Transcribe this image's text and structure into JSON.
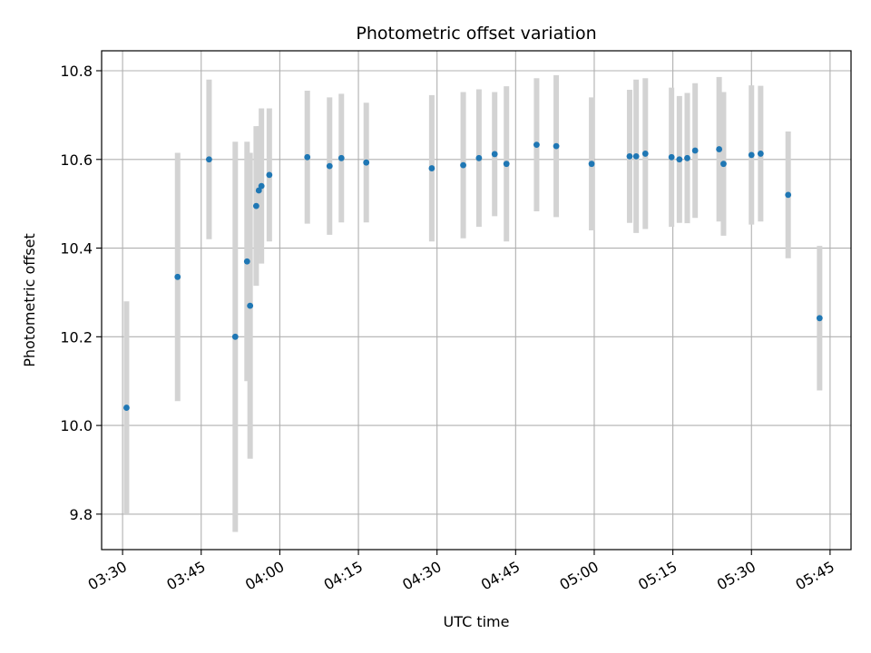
{
  "chart_data": {
    "type": "scatter",
    "title": "Photometric offset variation",
    "xlabel": "UTC time",
    "ylabel": "Photometric offset",
    "x_unit": "UTC time (hh:mm)",
    "xlim": [
      "03:26",
      "05:49"
    ],
    "ylim": [
      9.72,
      10.845
    ],
    "grid": true,
    "x_ticks": [
      "03:30",
      "03:45",
      "04:00",
      "04:15",
      "04:30",
      "04:45",
      "05:00",
      "05:15",
      "05:30",
      "05:45"
    ],
    "y_ticks": [
      9.8,
      10.0,
      10.2,
      10.4,
      10.6,
      10.8
    ],
    "y_tick_labels": [
      "9.8",
      "10.0",
      "10.2",
      "10.4",
      "10.6",
      "10.8"
    ],
    "colors": {
      "marker": "#1f77b4",
      "errorbar": "#d3d3d3",
      "grid": "#b0b0b0"
    },
    "points": [
      {
        "x": "03:30:45",
        "y": 10.04,
        "yerr": 0.24
      },
      {
        "x": "03:40:30",
        "y": 10.335,
        "yerr": 0.28
      },
      {
        "x": "03:46:30",
        "y": 10.6,
        "yerr": 0.18
      },
      {
        "x": "03:51:30",
        "y": 10.2,
        "yerr": 0.44
      },
      {
        "x": "03:53:45",
        "y": 10.37,
        "yerr": 0.27
      },
      {
        "x": "03:54:20",
        "y": 10.27,
        "yerr": 0.345
      },
      {
        "x": "03:55:30",
        "y": 10.495,
        "yerr": 0.18
      },
      {
        "x": "03:56:00",
        "y": 10.53,
        "yerr": 0.145
      },
      {
        "x": "03:56:30",
        "y": 10.54,
        "yerr": 0.175
      },
      {
        "x": "03:58:00",
        "y": 10.565,
        "yerr": 0.15
      },
      {
        "x": "04:05:15",
        "y": 10.605,
        "yerr": 0.15
      },
      {
        "x": "04:09:30",
        "y": 10.585,
        "yerr": 0.155
      },
      {
        "x": "04:11:45",
        "y": 10.603,
        "yerr": 0.145
      },
      {
        "x": "04:16:30",
        "y": 10.593,
        "yerr": 0.135
      },
      {
        "x": "04:29:00",
        "y": 10.58,
        "yerr": 0.165
      },
      {
        "x": "04:35:00",
        "y": 10.587,
        "yerr": 0.165
      },
      {
        "x": "04:38:00",
        "y": 10.603,
        "yerr": 0.155
      },
      {
        "x": "04:41:00",
        "y": 10.612,
        "yerr": 0.14
      },
      {
        "x": "04:43:15",
        "y": 10.59,
        "yerr": 0.175
      },
      {
        "x": "04:49:00",
        "y": 10.633,
        "yerr": 0.15
      },
      {
        "x": "04:52:45",
        "y": 10.63,
        "yerr": 0.16
      },
      {
        "x": "04:59:30",
        "y": 10.59,
        "yerr": 0.15
      },
      {
        "x": "05:06:45",
        "y": 10.607,
        "yerr": 0.15
      },
      {
        "x": "05:08:00",
        "y": 10.607,
        "yerr": 0.173
      },
      {
        "x": "05:09:45",
        "y": 10.613,
        "yerr": 0.17
      },
      {
        "x": "05:14:45",
        "y": 10.605,
        "yerr": 0.157
      },
      {
        "x": "05:16:15",
        "y": 10.6,
        "yerr": 0.143
      },
      {
        "x": "05:17:45",
        "y": 10.603,
        "yerr": 0.147
      },
      {
        "x": "05:19:15",
        "y": 10.62,
        "yerr": 0.152
      },
      {
        "x": "05:23:50",
        "y": 10.623,
        "yerr": 0.163
      },
      {
        "x": "05:24:40",
        "y": 10.59,
        "yerr": 0.162
      },
      {
        "x": "05:30:00",
        "y": 10.61,
        "yerr": 0.157
      },
      {
        "x": "05:31:45",
        "y": 10.613,
        "yerr": 0.153
      },
      {
        "x": "05:37:00",
        "y": 10.52,
        "yerr": 0.143
      },
      {
        "x": "05:43:00",
        "y": 10.242,
        "yerr": 0.163
      }
    ]
  }
}
